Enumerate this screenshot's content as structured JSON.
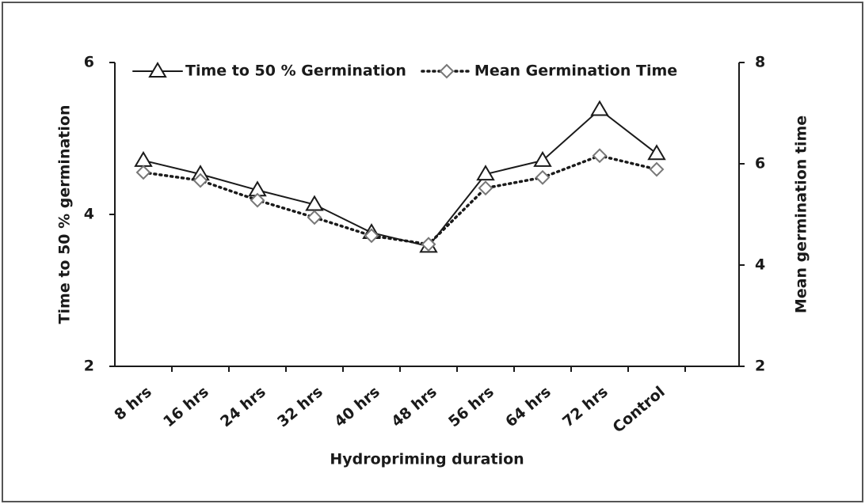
{
  "chart_data": {
    "type": "line",
    "xlabel": "Hydropriming duration",
    "ylabel": "Time to 50 % germination",
    "y2label": "Mean germination time",
    "categories": [
      "8 hrs",
      "16 hrs",
      "24 hrs",
      "32 hrs",
      "40 hrs",
      "48 hrs",
      "56 hrs",
      "64 hrs",
      "72 hrs",
      "Control"
    ],
    "series": [
      {
        "name": "Time to 50 % Germination",
        "color": "#1a1a1a",
        "marker": "triangle",
        "dash": "solid",
        "values": [
          4.71,
          4.53,
          4.32,
          4.13,
          3.76,
          3.58,
          4.53,
          4.71,
          5.38,
          4.8
        ]
      },
      {
        "name": "Mean Germination Time",
        "color": "#1a1a1a",
        "marker": "diamond",
        "dash": "dotted",
        "axis": "y2",
        "values": [
          5.83,
          5.67,
          5.28,
          4.94,
          4.58,
          4.41,
          5.52,
          5.73,
          6.16,
          5.89
        ]
      }
    ],
    "ylim": [
      2,
      6
    ],
    "yticks": [
      2,
      4,
      6
    ],
    "y2lim": [
      2,
      8
    ],
    "y2ticks": [
      2,
      4,
      6,
      8
    ],
    "grid": false,
    "legend": "top"
  }
}
